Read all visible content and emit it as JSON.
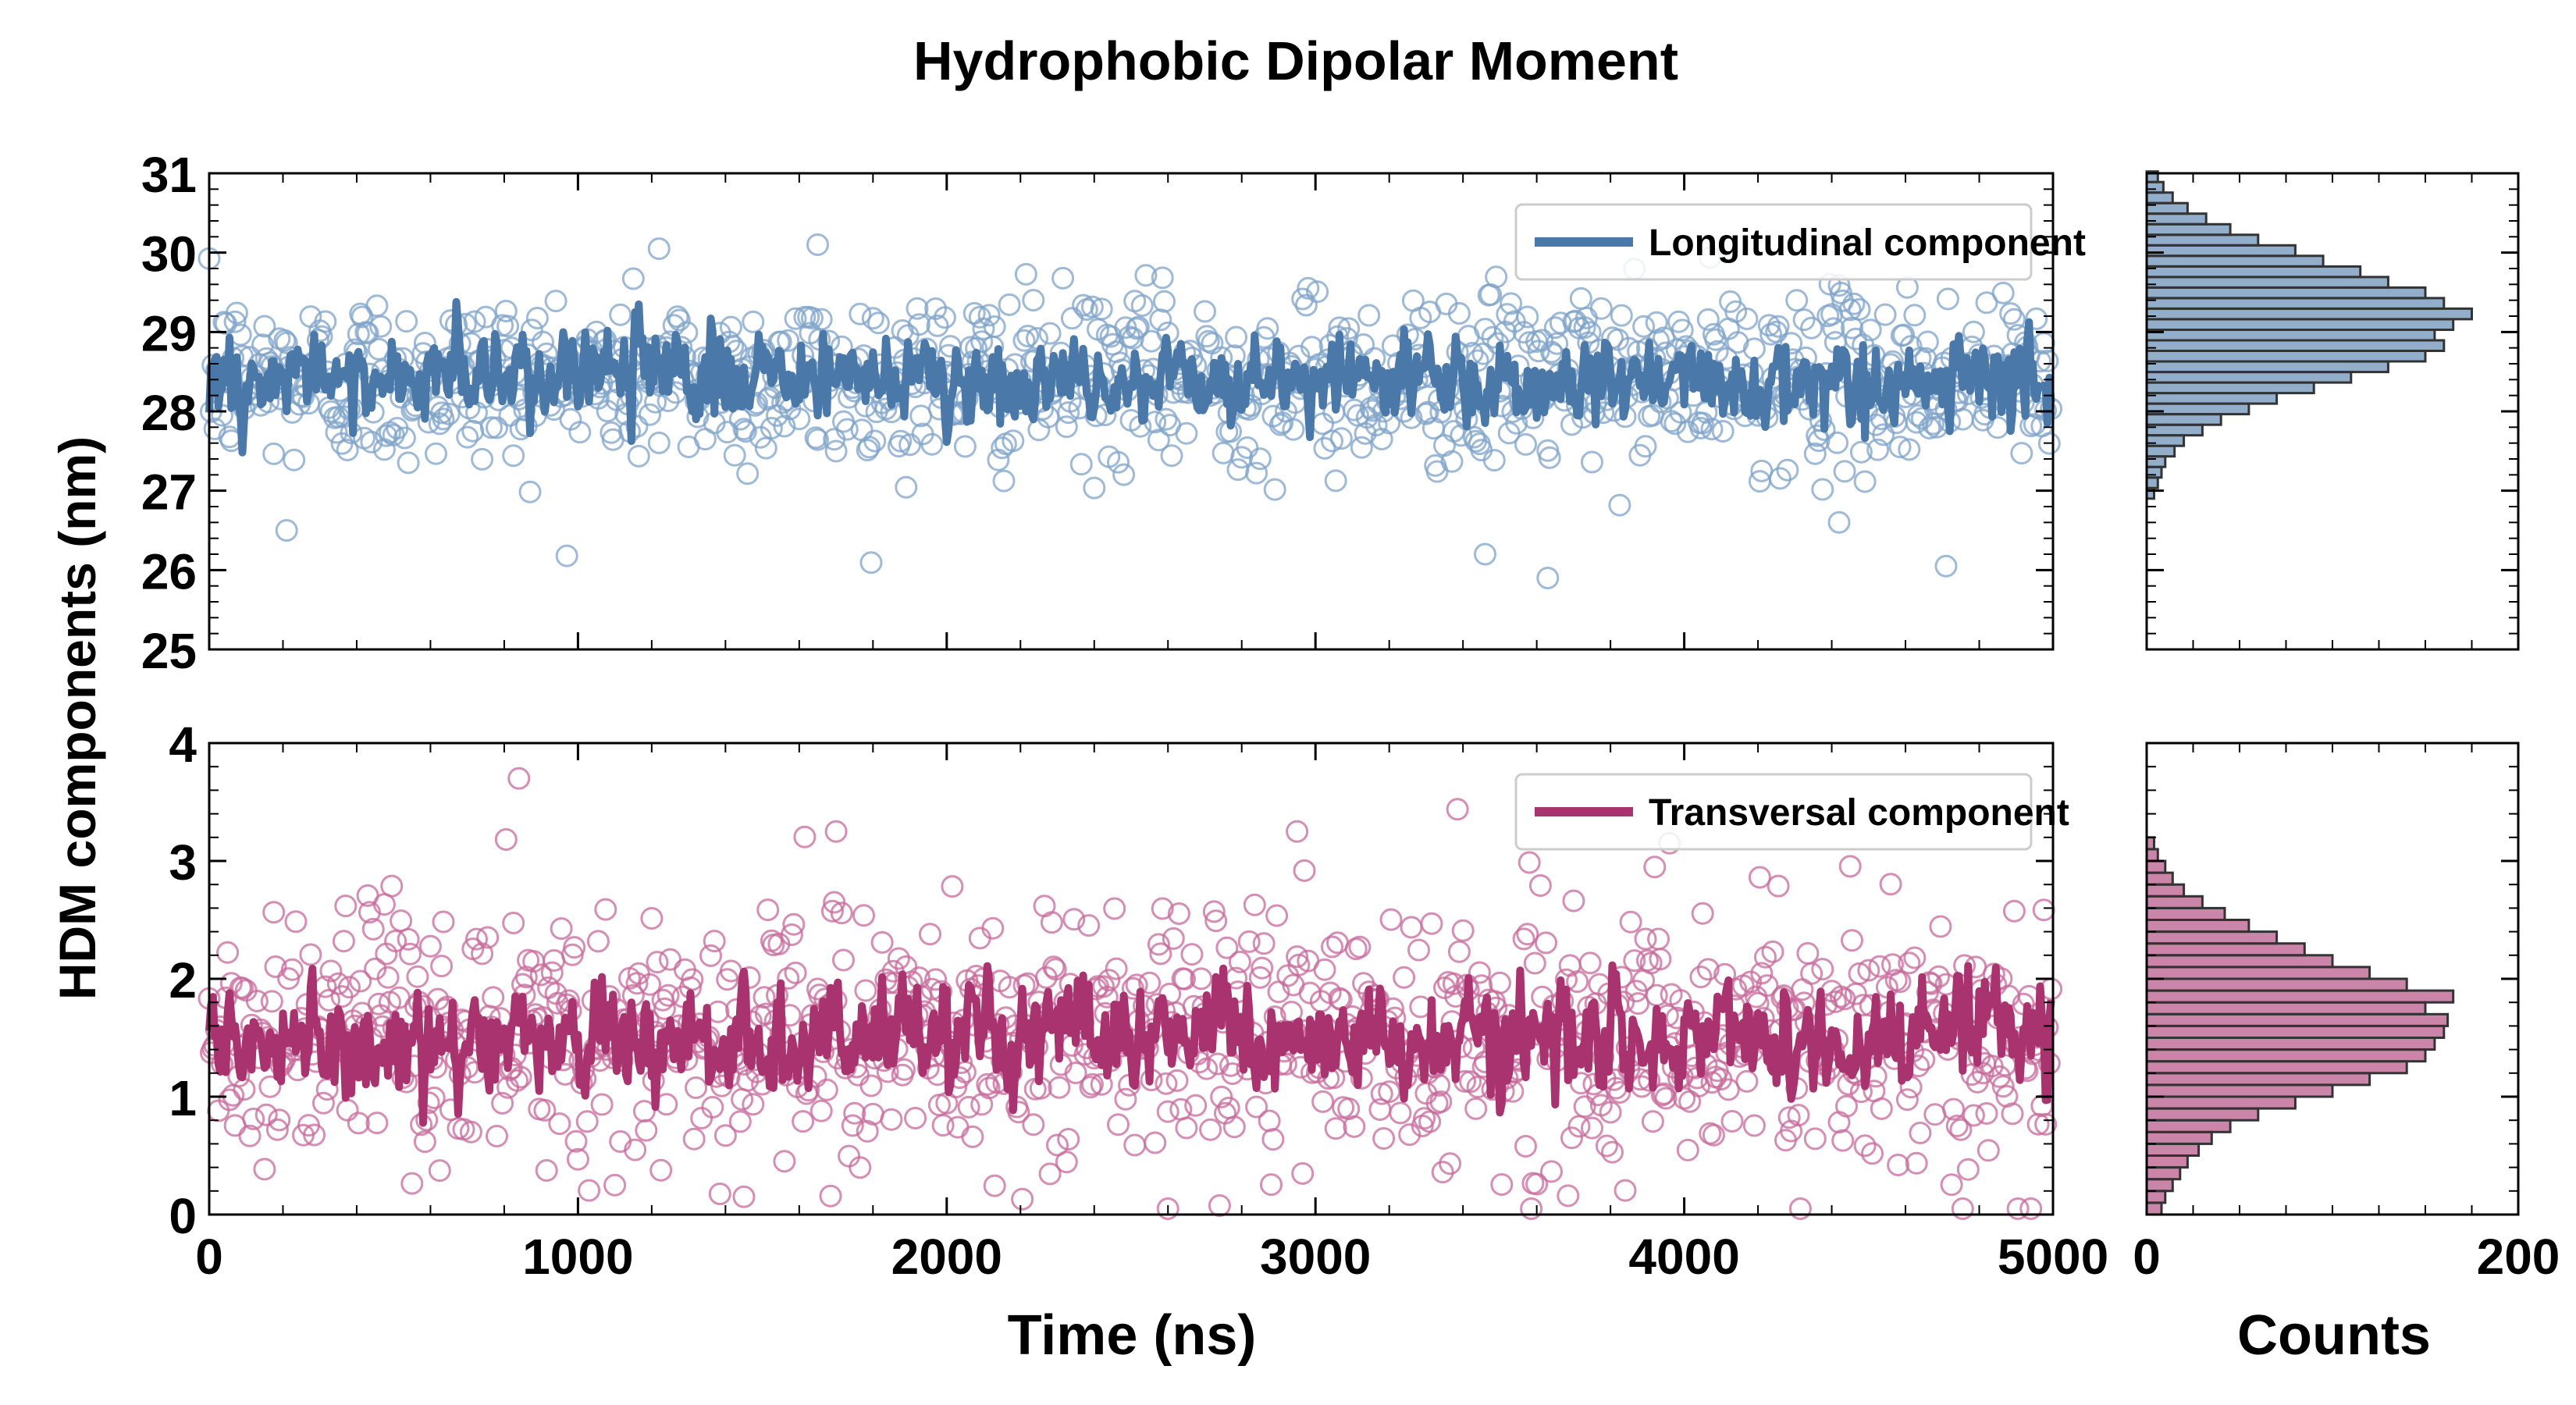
{
  "figure": {
    "title": "Hydrophobic Dipolar Moment"
  },
  "colors": {
    "longitudinal": "#4a78a8",
    "longitudinal_light": "#7fa3c8",
    "transversal": "#a8336f",
    "transversal_light": "#c76a9b"
  },
  "chart_data": [
    {
      "type": "scatter",
      "panel": "top-timeseries",
      "title": "",
      "xlabel": "",
      "ylabel": "HDM components (nm)",
      "xlim": [
        0,
        5000
      ],
      "ylim": [
        25,
        31
      ],
      "xticks": [
        0,
        1000,
        2000,
        3000,
        4000,
        5000
      ],
      "yticks": [
        "25",
        "26",
        "27",
        "28",
        "29",
        "30",
        "31"
      ],
      "series": [
        {
          "name": "Longitudinal component",
          "style": "open-circles + running-average line",
          "mean": 28.4,
          "std": 0.55,
          "running_mean_std": 0.25,
          "n_points": 1000,
          "x_step": 5,
          "outliers": [
            [
              210,
              26.5
            ],
            [
              3460,
              26.2
            ],
            [
              3630,
              25.9
            ],
            [
              4420,
              26.6
            ],
            [
              4710,
              26.05
            ],
            [
              1650,
              30.1
            ],
            [
              1220,
              30.05
            ]
          ]
        }
      ],
      "legend": "upper right",
      "grid": false
    },
    {
      "type": "scatter",
      "panel": "bottom-timeseries",
      "title": "",
      "xlabel": "Time (ns)",
      "ylabel": "HDM components (nm)",
      "xlim": [
        0,
        5000
      ],
      "ylim": [
        0,
        4
      ],
      "xticks": [
        "0",
        "1000",
        "2000",
        "3000",
        "4000",
        "5000"
      ],
      "yticks": [
        "0",
        "1",
        "2",
        "3",
        "4"
      ],
      "series": [
        {
          "name": "Transversal component",
          "style": "open-circles + running-average line",
          "mean": 1.5,
          "std": 0.55,
          "running_mean_std": 0.2,
          "n_points": 1000,
          "x_step": 5,
          "outliers": [
            [
              840,
              3.7
            ],
            [
              1700,
              3.25
            ],
            [
              2950,
              3.25
            ],
            [
              3960,
              3.15
            ],
            [
              2600,
              0.05
            ],
            [
              1450,
              0.15
            ]
          ]
        }
      ],
      "legend": "upper right",
      "grid": false
    },
    {
      "type": "bar",
      "orientation": "horizontal",
      "panel": "top-histogram",
      "xlabel": "",
      "xlim": [
        0,
        200
      ],
      "ylim": [
        25,
        31
      ],
      "bin_edges_start": 26.9,
      "bin_width": 0.133,
      "values": [
        4,
        6,
        8,
        10,
        15,
        20,
        30,
        40,
        55,
        70,
        90,
        110,
        130,
        150,
        160,
        155,
        165,
        175,
        160,
        150,
        130,
        115,
        95,
        80,
        60,
        45,
        32,
        22,
        14,
        9,
        6
      ]
    },
    {
      "type": "bar",
      "orientation": "horizontal",
      "panel": "bottom-histogram",
      "xlabel": "Counts",
      "xlim": [
        0,
        200
      ],
      "xticks": [
        "0",
        "200"
      ],
      "ylim": [
        0,
        4
      ],
      "bin_edges_start": 0.0,
      "bin_width": 0.1,
      "values": [
        8,
        10,
        14,
        18,
        22,
        28,
        35,
        45,
        60,
        80,
        100,
        120,
        140,
        150,
        155,
        160,
        162,
        150,
        165,
        140,
        120,
        100,
        85,
        70,
        55,
        42,
        30,
        20,
        14,
        10,
        6,
        4
      ]
    }
  ]
}
